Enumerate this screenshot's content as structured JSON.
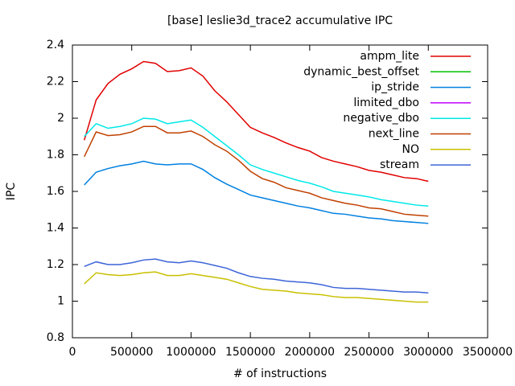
{
  "chart_data": {
    "type": "line",
    "title": "[base] leslie3d_trace2 accumulative IPC",
    "x_label": "# of instructions",
    "y_label": "IPC",
    "x": [
      100000,
      200000,
      300000,
      400000,
      500000,
      600000,
      700000,
      800000,
      900000,
      1000000,
      1100000,
      1200000,
      1300000,
      1400000,
      1500000,
      1600000,
      1700000,
      1800000,
      1900000,
      2000000,
      2100000,
      2200000,
      2300000,
      2400000,
      2500000,
      2600000,
      2700000,
      2800000,
      2900000,
      3000000
    ],
    "xlim": [
      0,
      3500000
    ],
    "xticks": [
      0,
      500000,
      1000000,
      1500000,
      2000000,
      2500000,
      3000000,
      3500000
    ],
    "ylim": [
      0.8,
      2.4
    ],
    "yticks": [
      0.8,
      1,
      1.2,
      1.4,
      1.6,
      1.8,
      2,
      2.2,
      2.4
    ],
    "legend": "top-right",
    "series": [
      {
        "name": "ampm_lite",
        "color": "#e00000",
        "values": [
          1.88,
          2.1,
          2.19,
          2.24,
          2.27,
          2.31,
          2.3,
          2.255,
          2.26,
          2.275,
          2.23,
          2.15,
          2.09,
          2.02,
          1.95,
          1.92,
          1.895,
          1.865,
          1.84,
          1.82,
          1.785,
          1.765,
          1.75,
          1.735,
          1.715,
          1.705,
          1.69,
          1.675,
          1.67,
          1.655
        ]
      },
      {
        "name": "dynamic_best_offset",
        "color": "#00c000",
        "values": [
          null,
          null,
          null,
          null,
          null,
          null,
          null,
          null,
          null,
          null,
          null,
          null,
          null,
          null,
          null,
          null,
          null,
          null,
          null,
          null,
          null,
          null,
          null,
          null,
          null,
          null,
          null,
          null,
          null,
          null
        ]
      },
      {
        "name": "ip_stride",
        "color": "#0080e0",
        "values": [
          1.635,
          1.705,
          1.725,
          1.74,
          1.75,
          1.765,
          1.75,
          1.745,
          1.75,
          1.75,
          1.72,
          1.675,
          1.64,
          1.61,
          1.58,
          1.565,
          1.55,
          1.535,
          1.52,
          1.51,
          1.495,
          1.48,
          1.475,
          1.465,
          1.455,
          1.45,
          1.44,
          1.435,
          1.43,
          1.425
        ]
      },
      {
        "name": "limited_dbo",
        "color": "#c000ff",
        "values": [
          null,
          null,
          null,
          null,
          null,
          null,
          null,
          null,
          null,
          null,
          null,
          null,
          null,
          null,
          null,
          null,
          null,
          null,
          null,
          null,
          null,
          null,
          null,
          null,
          null,
          null,
          null,
          null,
          null,
          null
        ]
      },
      {
        "name": "negative_dbo",
        "color": "#00e8e8",
        "values": [
          1.9,
          1.97,
          1.945,
          1.955,
          1.97,
          2.0,
          1.995,
          1.97,
          1.98,
          1.99,
          1.95,
          1.9,
          1.85,
          1.8,
          1.745,
          1.72,
          1.7,
          1.68,
          1.66,
          1.645,
          1.625,
          1.6,
          1.59,
          1.58,
          1.57,
          1.555,
          1.545,
          1.535,
          1.525,
          1.52
        ]
      },
      {
        "name": "next_line",
        "color": "#c04000",
        "values": [
          1.79,
          1.925,
          1.905,
          1.91,
          1.925,
          1.955,
          1.955,
          1.92,
          1.92,
          1.93,
          1.9,
          1.855,
          1.82,
          1.77,
          1.71,
          1.67,
          1.65,
          1.62,
          1.605,
          1.59,
          1.565,
          1.55,
          1.535,
          1.525,
          1.51,
          1.505,
          1.49,
          1.475,
          1.47,
          1.465
        ]
      },
      {
        "name": "NO",
        "color": "#c8c000",
        "values": [
          1.095,
          1.155,
          1.145,
          1.14,
          1.145,
          1.155,
          1.16,
          1.14,
          1.14,
          1.15,
          1.14,
          1.13,
          1.12,
          1.1,
          1.08,
          1.065,
          1.06,
          1.055,
          1.045,
          1.04,
          1.035,
          1.025,
          1.02,
          1.02,
          1.015,
          1.01,
          1.005,
          1.0,
          0.995,
          0.995
        ]
      },
      {
        "name": "stream",
        "color": "#3c64d8",
        "values": [
          1.19,
          1.215,
          1.2,
          1.2,
          1.21,
          1.225,
          1.23,
          1.215,
          1.21,
          1.22,
          1.21,
          1.195,
          1.18,
          1.155,
          1.135,
          1.125,
          1.12,
          1.11,
          1.105,
          1.1,
          1.09,
          1.075,
          1.07,
          1.07,
          1.065,
          1.06,
          1.055,
          1.05,
          1.05,
          1.045
        ]
      }
    ]
  }
}
